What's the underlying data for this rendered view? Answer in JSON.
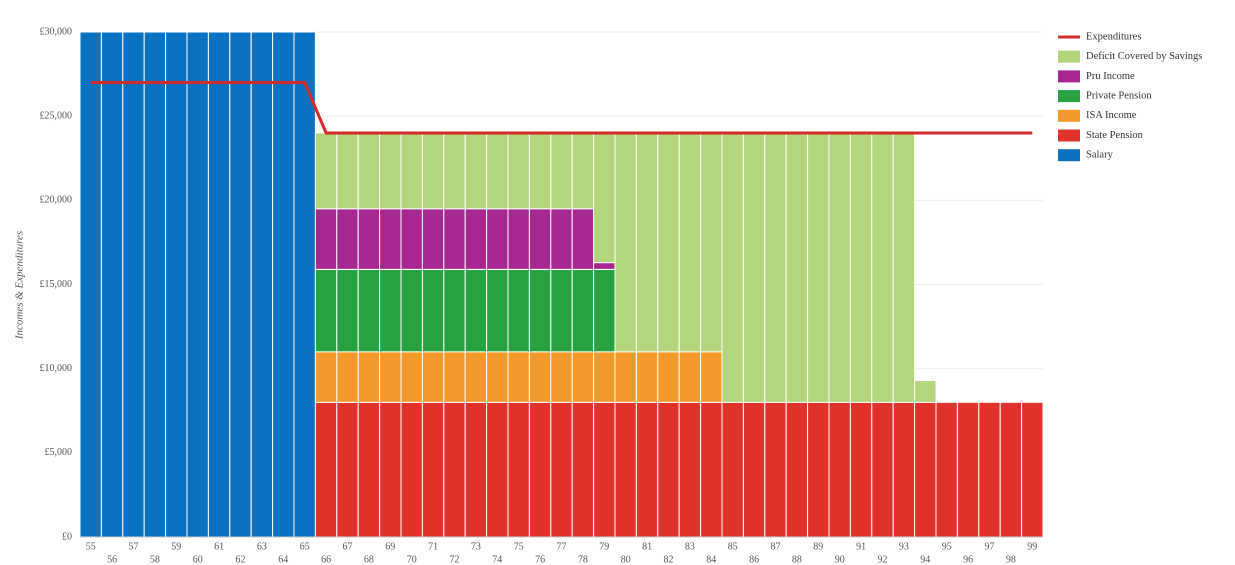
{
  "chart_data": {
    "type": "bar",
    "stacked": true,
    "y_label": "Incomes & Expenditures",
    "categories": [
      55,
      56,
      57,
      58,
      59,
      60,
      61,
      62,
      63,
      64,
      65,
      66,
      67,
      68,
      69,
      70,
      71,
      72,
      73,
      74,
      75,
      76,
      77,
      78,
      79,
      80,
      81,
      82,
      83,
      84,
      85,
      86,
      87,
      88,
      89,
      90,
      91,
      92,
      93,
      94,
      95,
      96,
      97,
      98,
      99
    ],
    "ylim": [
      0,
      30000
    ],
    "yticks": [
      {
        "value": 0,
        "label": "£0"
      },
      {
        "value": 5000,
        "label": "£5,000"
      },
      {
        "value": 10000,
        "label": "£10,000"
      },
      {
        "value": 15000,
        "label": "£15,000"
      },
      {
        "value": 20000,
        "label": "£20,000"
      },
      {
        "value": 25000,
        "label": "£25,000"
      },
      {
        "value": 30000,
        "label": "£30,000"
      }
    ],
    "grid": true,
    "legend": "right",
    "series": [
      {
        "name": "Expenditures",
        "type": "line",
        "color": "#d42a2a",
        "values": [
          27000,
          27000,
          27000,
          27000,
          27000,
          27000,
          27000,
          27000,
          27000,
          27000,
          27000,
          24000,
          24000,
          24000,
          24000,
          24000,
          24000,
          24000,
          24000,
          24000,
          24000,
          24000,
          24000,
          24000,
          24000,
          24000,
          24000,
          24000,
          24000,
          24000,
          24000,
          24000,
          24000,
          24000,
          24000,
          24000,
          24000,
          24000,
          24000,
          24000,
          24000,
          24000,
          24000,
          24000,
          24000
        ]
      },
      {
        "name": "Deficit Covered by Savings",
        "color": "#b3d67c",
        "values": [
          null,
          null,
          null,
          null,
          null,
          null,
          null,
          null,
          null,
          null,
          null,
          4500,
          4500,
          4500,
          4500,
          4500,
          4500,
          4500,
          4500,
          4500,
          4500,
          4500,
          4500,
          4500,
          7700,
          13000,
          13000,
          13000,
          13000,
          13000,
          16000,
          16000,
          16000,
          16000,
          16000,
          16000,
          16000,
          16000,
          16000,
          1300,
          null,
          null,
          null,
          null,
          null
        ]
      },
      {
        "name": "Pru Income",
        "color": "#a6278f",
        "values": [
          null,
          null,
          null,
          null,
          null,
          null,
          null,
          null,
          null,
          null,
          null,
          3600,
          3600,
          3600,
          3600,
          3600,
          3600,
          3600,
          3600,
          3600,
          3600,
          3600,
          3600,
          3600,
          400,
          null,
          null,
          null,
          null,
          null,
          null,
          null,
          null,
          null,
          null,
          null,
          null,
          null,
          null,
          null,
          null,
          null,
          null,
          null,
          null
        ]
      },
      {
        "name": "Private Pension",
        "color": "#27a243",
        "values": [
          null,
          null,
          null,
          null,
          null,
          null,
          null,
          null,
          null,
          null,
          null,
          4900,
          4900,
          4900,
          4900,
          4900,
          4900,
          4900,
          4900,
          4900,
          4900,
          4900,
          4900,
          4900,
          4900,
          null,
          null,
          null,
          null,
          null,
          null,
          null,
          null,
          null,
          null,
          null,
          null,
          null,
          null,
          null,
          null,
          null,
          null,
          null,
          null
        ]
      },
      {
        "name": "ISA Income",
        "color": "#f39a2a",
        "values": [
          null,
          null,
          null,
          null,
          null,
          null,
          null,
          null,
          null,
          null,
          null,
          3000,
          3000,
          3000,
          3000,
          3000,
          3000,
          3000,
          3000,
          3000,
          3000,
          3000,
          3000,
          3000,
          3000,
          3000,
          3000,
          3000,
          3000,
          3000,
          null,
          null,
          null,
          null,
          null,
          null,
          null,
          null,
          null,
          null,
          null,
          null,
          null,
          null,
          null
        ]
      },
      {
        "name": "State Pension",
        "color": "#e0312b",
        "values": [
          null,
          null,
          null,
          null,
          null,
          null,
          null,
          null,
          null,
          null,
          null,
          8000,
          8000,
          8000,
          8000,
          8000,
          8000,
          8000,
          8000,
          8000,
          8000,
          8000,
          8000,
          8000,
          8000,
          8000,
          8000,
          8000,
          8000,
          8000,
          8000,
          8000,
          8000,
          8000,
          8000,
          8000,
          8000,
          8000,
          8000,
          8000,
          8000,
          8000,
          8000,
          8000,
          8000
        ]
      },
      {
        "name": "Salary",
        "color": "#0a72c0",
        "values": [
          30000,
          30000,
          30000,
          30000,
          30000,
          30000,
          30000,
          30000,
          30000,
          30000,
          30000,
          null,
          null,
          null,
          null,
          null,
          null,
          null,
          null,
          null,
          null,
          null,
          null,
          null,
          null,
          null,
          null,
          null,
          null,
          null,
          null,
          null,
          null,
          null,
          null,
          null,
          null,
          null,
          null,
          null,
          null,
          null,
          null,
          null,
          null
        ]
      }
    ]
  }
}
